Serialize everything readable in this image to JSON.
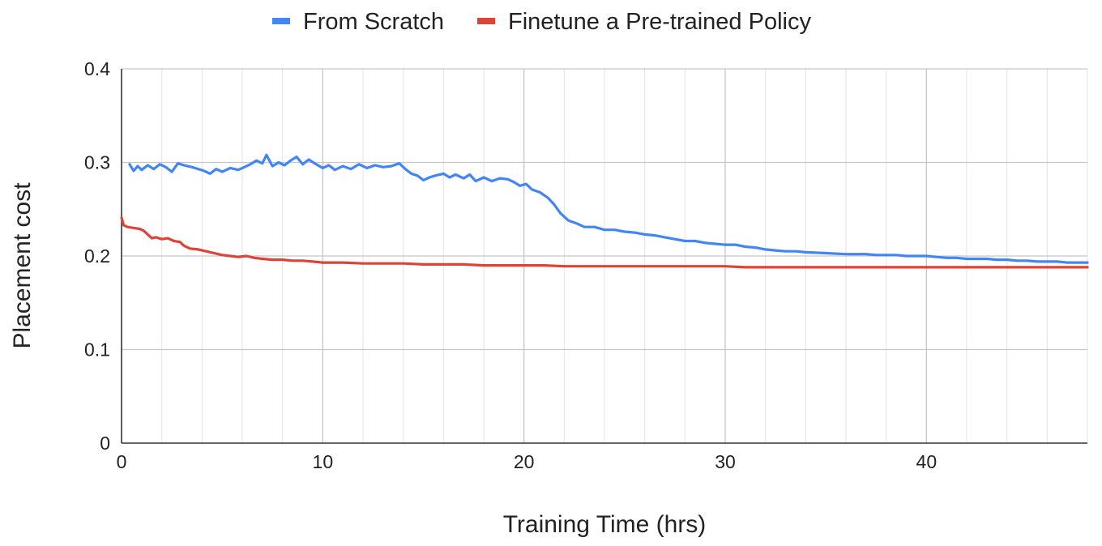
{
  "chart_data": {
    "type": "line",
    "title": "",
    "xlabel": "Training Time (hrs)",
    "ylabel": "Placement cost",
    "xlim": [
      0,
      48
    ],
    "ylim": [
      0,
      0.4
    ],
    "x_ticks": [
      0,
      10,
      20,
      30,
      40
    ],
    "x_ticks_label": [
      "0",
      "10",
      "20",
      "30",
      "40"
    ],
    "x_minor_grid_step": 2,
    "y_ticks": [
      0,
      0.1,
      0.2,
      0.3,
      0.4
    ],
    "y_ticks_label": [
      "0",
      "0.1",
      "0.2",
      "0.3",
      "0.4"
    ],
    "grid": true,
    "legend_position": "top-center",
    "series": [
      {
        "name": "From Scratch",
        "color": "#4285f4",
        "points": [
          [
            0.4,
            0.298
          ],
          [
            0.6,
            0.291
          ],
          [
            0.8,
            0.296
          ],
          [
            1.0,
            0.292
          ],
          [
            1.3,
            0.297
          ],
          [
            1.6,
            0.293
          ],
          [
            1.9,
            0.298
          ],
          [
            2.2,
            0.295
          ],
          [
            2.5,
            0.29
          ],
          [
            2.8,
            0.299
          ],
          [
            3.1,
            0.297
          ],
          [
            3.5,
            0.295
          ],
          [
            3.8,
            0.293
          ],
          [
            4.1,
            0.291
          ],
          [
            4.4,
            0.288
          ],
          [
            4.7,
            0.293
          ],
          [
            5.0,
            0.29
          ],
          [
            5.4,
            0.294
          ],
          [
            5.8,
            0.292
          ],
          [
            6.1,
            0.295
          ],
          [
            6.4,
            0.298
          ],
          [
            6.7,
            0.302
          ],
          [
            7.0,
            0.299
          ],
          [
            7.2,
            0.308
          ],
          [
            7.5,
            0.296
          ],
          [
            7.8,
            0.3
          ],
          [
            8.1,
            0.297
          ],
          [
            8.4,
            0.302
          ],
          [
            8.7,
            0.306
          ],
          [
            9.0,
            0.298
          ],
          [
            9.3,
            0.303
          ],
          [
            9.6,
            0.299
          ],
          [
            10.0,
            0.294
          ],
          [
            10.3,
            0.297
          ],
          [
            10.6,
            0.292
          ],
          [
            11.0,
            0.296
          ],
          [
            11.4,
            0.293
          ],
          [
            11.8,
            0.298
          ],
          [
            12.2,
            0.294
          ],
          [
            12.6,
            0.297
          ],
          [
            13.0,
            0.295
          ],
          [
            13.4,
            0.296
          ],
          [
            13.8,
            0.299
          ],
          [
            14.1,
            0.293
          ],
          [
            14.4,
            0.288
          ],
          [
            14.7,
            0.286
          ],
          [
            15.0,
            0.281
          ],
          [
            15.3,
            0.284
          ],
          [
            15.6,
            0.286
          ],
          [
            16.0,
            0.288
          ],
          [
            16.3,
            0.284
          ],
          [
            16.6,
            0.287
          ],
          [
            17.0,
            0.283
          ],
          [
            17.3,
            0.287
          ],
          [
            17.6,
            0.28
          ],
          [
            18.0,
            0.284
          ],
          [
            18.4,
            0.28
          ],
          [
            18.8,
            0.283
          ],
          [
            19.2,
            0.282
          ],
          [
            19.5,
            0.279
          ],
          [
            19.8,
            0.275
          ],
          [
            20.1,
            0.277
          ],
          [
            20.4,
            0.271
          ],
          [
            20.8,
            0.268
          ],
          [
            21.2,
            0.262
          ],
          [
            21.5,
            0.255
          ],
          [
            21.8,
            0.246
          ],
          [
            22.2,
            0.238
          ],
          [
            22.6,
            0.235
          ],
          [
            23.0,
            0.231
          ],
          [
            23.5,
            0.231
          ],
          [
            24.0,
            0.228
          ],
          [
            24.5,
            0.228
          ],
          [
            25.0,
            0.226
          ],
          [
            25.5,
            0.225
          ],
          [
            26.0,
            0.223
          ],
          [
            26.5,
            0.222
          ],
          [
            27.0,
            0.22
          ],
          [
            27.5,
            0.218
          ],
          [
            28.0,
            0.216
          ],
          [
            28.5,
            0.216
          ],
          [
            29.0,
            0.214
          ],
          [
            29.5,
            0.213
          ],
          [
            30.0,
            0.212
          ],
          [
            30.5,
            0.212
          ],
          [
            31.0,
            0.21
          ],
          [
            31.5,
            0.209
          ],
          [
            32.0,
            0.207
          ],
          [
            32.5,
            0.206
          ],
          [
            33.0,
            0.205
          ],
          [
            33.5,
            0.205
          ],
          [
            34.0,
            0.204
          ],
          [
            35.0,
            0.203
          ],
          [
            36.0,
            0.202
          ],
          [
            37.0,
            0.202
          ],
          [
            37.5,
            0.201
          ],
          [
            38.0,
            0.201
          ],
          [
            38.5,
            0.201
          ],
          [
            39.0,
            0.2
          ],
          [
            39.5,
            0.2
          ],
          [
            40.0,
            0.2
          ],
          [
            40.5,
            0.199
          ],
          [
            41.0,
            0.198
          ],
          [
            41.5,
            0.198
          ],
          [
            42.0,
            0.197
          ],
          [
            42.5,
            0.197
          ],
          [
            43.0,
            0.197
          ],
          [
            43.5,
            0.196
          ],
          [
            44.0,
            0.196
          ],
          [
            44.5,
            0.195
          ],
          [
            45.0,
            0.195
          ],
          [
            45.5,
            0.194
          ],
          [
            46.0,
            0.194
          ],
          [
            46.5,
            0.194
          ],
          [
            47.0,
            0.193
          ],
          [
            47.5,
            0.193
          ],
          [
            48.0,
            0.193
          ]
        ]
      },
      {
        "name": "Finetune a Pre-trained Policy",
        "color": "#db4437",
        "points": [
          [
            0.0,
            0.241
          ],
          [
            0.1,
            0.233
          ],
          [
            0.3,
            0.231
          ],
          [
            0.6,
            0.23
          ],
          [
            0.9,
            0.229
          ],
          [
            1.1,
            0.227
          ],
          [
            1.3,
            0.223
          ],
          [
            1.5,
            0.219
          ],
          [
            1.7,
            0.22
          ],
          [
            2.0,
            0.218
          ],
          [
            2.3,
            0.219
          ],
          [
            2.6,
            0.216
          ],
          [
            2.9,
            0.215
          ],
          [
            3.1,
            0.211
          ],
          [
            3.4,
            0.208
          ],
          [
            3.8,
            0.207
          ],
          [
            4.2,
            0.205
          ],
          [
            4.6,
            0.203
          ],
          [
            5.0,
            0.201
          ],
          [
            5.4,
            0.2
          ],
          [
            5.8,
            0.199
          ],
          [
            6.2,
            0.2
          ],
          [
            6.6,
            0.198
          ],
          [
            7.0,
            0.197
          ],
          [
            7.5,
            0.196
          ],
          [
            8.0,
            0.196
          ],
          [
            8.5,
            0.195
          ],
          [
            9.0,
            0.195
          ],
          [
            9.5,
            0.194
          ],
          [
            10.0,
            0.193
          ],
          [
            11.0,
            0.193
          ],
          [
            12.0,
            0.192
          ],
          [
            13.0,
            0.192
          ],
          [
            14.0,
            0.192
          ],
          [
            15.0,
            0.191
          ],
          [
            16.0,
            0.191
          ],
          [
            17.0,
            0.191
          ],
          [
            18.0,
            0.19
          ],
          [
            19.0,
            0.19
          ],
          [
            20.0,
            0.19
          ],
          [
            21.0,
            0.19
          ],
          [
            22.0,
            0.189
          ],
          [
            23.0,
            0.189
          ],
          [
            24.0,
            0.189
          ],
          [
            25.0,
            0.189
          ],
          [
            26.0,
            0.189
          ],
          [
            27.0,
            0.189
          ],
          [
            28.0,
            0.189
          ],
          [
            29.0,
            0.189
          ],
          [
            30.0,
            0.189
          ],
          [
            31.0,
            0.188
          ],
          [
            32.0,
            0.188
          ],
          [
            33.0,
            0.188
          ],
          [
            34.0,
            0.188
          ],
          [
            35.0,
            0.188
          ],
          [
            36.0,
            0.188
          ],
          [
            37.0,
            0.188
          ],
          [
            38.0,
            0.188
          ],
          [
            39.0,
            0.188
          ],
          [
            40.0,
            0.188
          ],
          [
            41.0,
            0.188
          ],
          [
            42.0,
            0.188
          ],
          [
            43.0,
            0.188
          ],
          [
            44.0,
            0.188
          ],
          [
            45.0,
            0.188
          ],
          [
            46.0,
            0.188
          ],
          [
            47.0,
            0.188
          ],
          [
            48.0,
            0.188
          ]
        ]
      }
    ]
  }
}
